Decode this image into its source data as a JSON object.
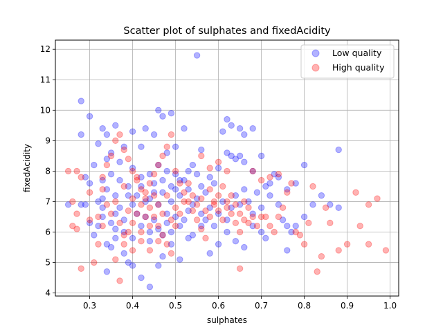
{
  "chart_data": {
    "type": "scatter",
    "title": "Scatter plot of sulphates and fixedAcidity",
    "xlabel": "sulphates",
    "ylabel": "fixedAcidity",
    "xlim": [
      0.22,
      1.02
    ],
    "ylim": [
      3.9,
      12.3
    ],
    "xticks": [
      "0.3",
      "0.4",
      "0.5",
      "0.6",
      "0.7",
      "0.8",
      "0.9",
      "1.0"
    ],
    "yticks": [
      "4",
      "5",
      "6",
      "7",
      "8",
      "9",
      "10",
      "11",
      "12"
    ],
    "grid": true,
    "legend_position": "top-right",
    "series": [
      {
        "name": "Low quality",
        "color": "#0000ff",
        "points": [
          [
            0.28,
            10.3
          ],
          [
            0.3,
            9.8
          ],
          [
            0.28,
            9.2
          ],
          [
            0.32,
            8.9
          ],
          [
            0.33,
            9.4
          ],
          [
            0.34,
            9.2
          ],
          [
            0.36,
            9.5
          ],
          [
            0.4,
            9.3
          ],
          [
            0.43,
            9.4
          ],
          [
            0.45,
            9.2
          ],
          [
            0.46,
            10.0
          ],
          [
            0.47,
            9.8
          ],
          [
            0.49,
            9.9
          ],
          [
            0.52,
            9.4
          ],
          [
            0.55,
            11.8
          ],
          [
            0.62,
            9.7
          ],
          [
            0.63,
            9.5
          ],
          [
            0.65,
            9.4
          ],
          [
            0.68,
            9.4
          ],
          [
            0.66,
            9.2
          ],
          [
            0.61,
            9.3
          ],
          [
            0.56,
            8.7
          ],
          [
            0.5,
            8.8
          ],
          [
            0.48,
            8.6
          ],
          [
            0.42,
            8.8
          ],
          [
            0.38,
            8.8
          ],
          [
            0.35,
            8.6
          ],
          [
            0.37,
            8.3
          ],
          [
            0.34,
            8.4
          ],
          [
            0.31,
            8.2
          ],
          [
            0.29,
            7.8
          ],
          [
            0.3,
            7.6
          ],
          [
            0.32,
            7.0
          ],
          [
            0.33,
            6.8
          ],
          [
            0.3,
            6.3
          ],
          [
            0.31,
            5.9
          ],
          [
            0.29,
            6.9
          ],
          [
            0.25,
            6.9
          ],
          [
            0.28,
            6.9
          ],
          [
            0.33,
            6.5
          ],
          [
            0.34,
            5.6
          ],
          [
            0.35,
            5.5
          ],
          [
            0.34,
            4.7
          ],
          [
            0.36,
            5.8
          ],
          [
            0.38,
            5.3
          ],
          [
            0.39,
            5.0
          ],
          [
            0.4,
            4.9
          ],
          [
            0.42,
            4.5
          ],
          [
            0.44,
            4.2
          ],
          [
            0.46,
            4.9
          ],
          [
            0.47,
            5.2
          ],
          [
            0.49,
            5.6
          ],
          [
            0.51,
            5.1
          ],
          [
            0.53,
            5.8
          ],
          [
            0.58,
            5.3
          ],
          [
            0.6,
            5.6
          ],
          [
            0.64,
            5.7
          ],
          [
            0.66,
            5.5
          ],
          [
            0.71,
            5.8
          ],
          [
            0.76,
            5.4
          ],
          [
            0.78,
            6.2
          ],
          [
            0.8,
            6.5
          ],
          [
            0.82,
            6.9
          ],
          [
            0.84,
            7.2
          ],
          [
            0.86,
            6.9
          ],
          [
            0.88,
            6.8
          ],
          [
            0.88,
            8.7
          ],
          [
            0.8,
            8.2
          ],
          [
            0.78,
            7.6
          ],
          [
            0.76,
            7.4
          ],
          [
            0.74,
            7.8
          ],
          [
            0.73,
            7.9
          ],
          [
            0.72,
            7.6
          ],
          [
            0.7,
            8.5
          ],
          [
            0.68,
            8.0
          ],
          [
            0.66,
            8.3
          ],
          [
            0.65,
            8.5
          ],
          [
            0.64,
            8.4
          ],
          [
            0.63,
            8.5
          ],
          [
            0.62,
            8.6
          ],
          [
            0.6,
            8.1
          ],
          [
            0.59,
            7.6
          ],
          [
            0.58,
            7.8
          ],
          [
            0.57,
            7.3
          ],
          [
            0.56,
            7.5
          ],
          [
            0.55,
            7.9
          ],
          [
            0.54,
            8.2
          ],
          [
            0.53,
            8.0
          ],
          [
            0.52,
            7.7
          ],
          [
            0.51,
            7.2
          ],
          [
            0.5,
            7.9
          ],
          [
            0.5,
            7.4
          ],
          [
            0.49,
            7.0
          ],
          [
            0.48,
            6.6
          ],
          [
            0.47,
            7.3
          ],
          [
            0.46,
            6.9
          ],
          [
            0.45,
            7.6
          ],
          [
            0.44,
            7.1
          ],
          [
            0.43,
            6.5
          ],
          [
            0.42,
            7.8
          ],
          [
            0.41,
            7.2
          ],
          [
            0.4,
            6.9
          ],
          [
            0.39,
            7.5
          ],
          [
            0.38,
            6.4
          ],
          [
            0.37,
            6.8
          ],
          [
            0.36,
            7.2
          ],
          [
            0.35,
            6.3
          ],
          [
            0.34,
            7.4
          ],
          [
            0.33,
            7.1
          ],
          [
            0.32,
            6.2
          ],
          [
            0.42,
            6.2
          ],
          [
            0.44,
            6.0
          ],
          [
            0.45,
            6.4
          ],
          [
            0.46,
            6.1
          ],
          [
            0.47,
            5.9
          ],
          [
            0.48,
            6.3
          ],
          [
            0.49,
            6.0
          ],
          [
            0.5,
            6.5
          ],
          [
            0.51,
            6.2
          ],
          [
            0.52,
            6.4
          ],
          [
            0.53,
            6.7
          ],
          [
            0.54,
            6.9
          ],
          [
            0.55,
            7.1
          ],
          [
            0.56,
            6.6
          ],
          [
            0.57,
            6.4
          ],
          [
            0.58,
            6.8
          ],
          [
            0.59,
            6.2
          ],
          [
            0.6,
            6.6
          ],
          [
            0.61,
            7.0
          ],
          [
            0.62,
            6.4
          ],
          [
            0.63,
            6.8
          ],
          [
            0.64,
            7.2
          ],
          [
            0.65,
            6.9
          ],
          [
            0.66,
            7.4
          ],
          [
            0.67,
            7.0
          ],
          [
            0.68,
            6.6
          ],
          [
            0.69,
            7.3
          ],
          [
            0.7,
            6.8
          ],
          [
            0.71,
            7.5
          ],
          [
            0.72,
            7.2
          ],
          [
            0.74,
            6.9
          ],
          [
            0.75,
            6.4
          ],
          [
            0.76,
            6.2
          ],
          [
            0.77,
            6.0
          ],
          [
            0.7,
            6.0
          ],
          [
            0.68,
            6.2
          ],
          [
            0.62,
            6.0
          ],
          [
            0.56,
            6.2
          ],
          [
            0.54,
            5.9
          ],
          [
            0.44,
            5.7
          ],
          [
            0.4,
            5.8
          ],
          [
            0.38,
            6.0
          ],
          [
            0.36,
            6.1
          ],
          [
            0.41,
            6.6
          ],
          [
            0.43,
            7.0
          ],
          [
            0.45,
            7.3
          ],
          [
            0.47,
            7.7
          ],
          [
            0.49,
            7.5
          ],
          [
            0.51,
            7.7
          ],
          [
            0.53,
            7.4
          ],
          [
            0.48,
            8.0
          ],
          [
            0.46,
            8.2
          ],
          [
            0.44,
            7.9
          ],
          [
            0.42,
            7.5
          ],
          [
            0.4,
            8.1
          ],
          [
            0.39,
            7.2
          ],
          [
            0.37,
            7.7
          ],
          [
            0.36,
            6.6
          ],
          [
            0.35,
            7.9
          ],
          [
            0.33,
            7.7
          ]
        ]
      },
      {
        "name": "High quality",
        "color": "#ff0000",
        "points": [
          [
            0.25,
            8.0
          ],
          [
            0.27,
            8.0
          ],
          [
            0.28,
            7.8
          ],
          [
            0.26,
            7.0
          ],
          [
            0.27,
            6.6
          ],
          [
            0.26,
            6.2
          ],
          [
            0.27,
            6.1
          ],
          [
            0.28,
            4.8
          ],
          [
            0.3,
            6.4
          ],
          [
            0.3,
            7.3
          ],
          [
            0.31,
            5.0
          ],
          [
            0.32,
            5.6
          ],
          [
            0.33,
            6.2
          ],
          [
            0.33,
            7.4
          ],
          [
            0.34,
            8.2
          ],
          [
            0.35,
            8.5
          ],
          [
            0.36,
            9.0
          ],
          [
            0.37,
            9.2
          ],
          [
            0.38,
            8.7
          ],
          [
            0.39,
            8.4
          ],
          [
            0.4,
            8.0
          ],
          [
            0.41,
            7.7
          ],
          [
            0.42,
            7.4
          ],
          [
            0.43,
            7.1
          ],
          [
            0.44,
            6.8
          ],
          [
            0.45,
            6.5
          ],
          [
            0.46,
            6.2
          ],
          [
            0.47,
            5.9
          ],
          [
            0.48,
            5.6
          ],
          [
            0.49,
            5.3
          ],
          [
            0.36,
            5.1
          ],
          [
            0.37,
            4.4
          ],
          [
            0.38,
            5.6
          ],
          [
            0.39,
            6.0
          ],
          [
            0.4,
            6.3
          ],
          [
            0.41,
            6.6
          ],
          [
            0.42,
            6.9
          ],
          [
            0.43,
            7.3
          ],
          [
            0.44,
            7.6
          ],
          [
            0.45,
            7.9
          ],
          [
            0.46,
            8.2
          ],
          [
            0.47,
            8.5
          ],
          [
            0.48,
            8.8
          ],
          [
            0.49,
            9.2
          ],
          [
            0.5,
            8.0
          ],
          [
            0.51,
            7.6
          ],
          [
            0.52,
            7.3
          ],
          [
            0.53,
            7.0
          ],
          [
            0.54,
            6.7
          ],
          [
            0.55,
            6.4
          ],
          [
            0.56,
            6.1
          ],
          [
            0.57,
            5.8
          ],
          [
            0.58,
            6.5
          ],
          [
            0.59,
            6.9
          ],
          [
            0.6,
            7.2
          ],
          [
            0.61,
            7.5
          ],
          [
            0.62,
            7.0
          ],
          [
            0.63,
            6.6
          ],
          [
            0.64,
            6.3
          ],
          [
            0.65,
            6.0
          ],
          [
            0.66,
            6.4
          ],
          [
            0.67,
            6.8
          ],
          [
            0.68,
            6.5
          ],
          [
            0.69,
            6.2
          ],
          [
            0.7,
            6.5
          ],
          [
            0.71,
            6.5
          ],
          [
            0.72,
            6.2
          ],
          [
            0.73,
            6.0
          ],
          [
            0.74,
            6.5
          ],
          [
            0.75,
            6.8
          ],
          [
            0.76,
            7.3
          ],
          [
            0.77,
            7.6
          ],
          [
            0.78,
            6.0
          ],
          [
            0.79,
            5.9
          ],
          [
            0.8,
            5.6
          ],
          [
            0.81,
            6.3
          ],
          [
            0.82,
            7.5
          ],
          [
            0.83,
            4.7
          ],
          [
            0.84,
            5.2
          ],
          [
            0.85,
            6.8
          ],
          [
            0.86,
            6.3
          ],
          [
            0.88,
            5.4
          ],
          [
            0.9,
            5.6
          ],
          [
            0.92,
            7.3
          ],
          [
            0.93,
            6.2
          ],
          [
            0.95,
            5.6
          ],
          [
            0.95,
            6.9
          ],
          [
            0.97,
            7.1
          ],
          [
            0.99,
            5.4
          ],
          [
            0.65,
            4.8
          ],
          [
            0.56,
            8.5
          ],
          [
            0.58,
            8.1
          ],
          [
            0.6,
            8.3
          ],
          [
            0.62,
            8.0
          ],
          [
            0.68,
            8.0
          ],
          [
            0.7,
            7.7
          ],
          [
            0.72,
            7.8
          ],
          [
            0.74,
            7.9
          ],
          [
            0.5,
            6.8
          ],
          [
            0.48,
            7.2
          ],
          [
            0.46,
            6.9
          ],
          [
            0.44,
            6.2
          ],
          [
            0.42,
            6.0
          ],
          [
            0.4,
            7.1
          ],
          [
            0.38,
            7.5
          ],
          [
            0.36,
            7.0
          ],
          [
            0.35,
            6.6
          ],
          [
            0.34,
            6.9
          ],
          [
            0.33,
            7.8
          ],
          [
            0.32,
            6.5
          ],
          [
            0.5,
            6.2
          ],
          [
            0.51,
            6.6
          ],
          [
            0.52,
            7.0
          ],
          [
            0.53,
            7.6
          ],
          [
            0.54,
            7.2
          ],
          [
            0.55,
            6.9
          ],
          [
            0.56,
            7.1
          ],
          [
            0.57,
            6.7
          ],
          [
            0.58,
            7.4
          ],
          [
            0.59,
            7.0
          ],
          [
            0.6,
            6.7
          ],
          [
            0.61,
            6.4
          ],
          [
            0.62,
            6.8
          ],
          [
            0.63,
            7.2
          ],
          [
            0.64,
            6.9
          ],
          [
            0.65,
            6.6
          ],
          [
            0.66,
            7.0
          ],
          [
            0.67,
            6.3
          ],
          [
            0.43,
            6.5
          ],
          [
            0.41,
            7.8
          ],
          [
            0.39,
            6.7
          ],
          [
            0.37,
            6.3
          ],
          [
            0.45,
            7.2
          ],
          [
            0.47,
            6.6
          ],
          [
            0.49,
            6.4
          ],
          [
            0.42,
            5.7
          ],
          [
            0.44,
            5.4
          ],
          [
            0.46,
            5.7
          ],
          [
            0.4,
            5.4
          ],
          [
            0.38,
            5.9
          ]
        ]
      }
    ]
  }
}
